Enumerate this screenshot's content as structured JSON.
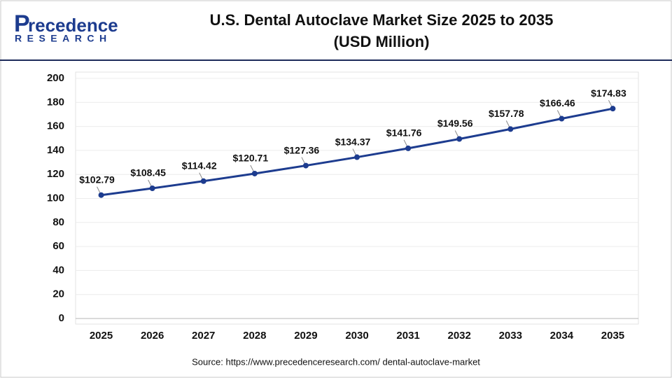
{
  "header": {
    "logo_name": "recedence",
    "logo_initial": "P",
    "logo_tagline": "RESEARCH"
  },
  "chart_data": {
    "type": "line",
    "title": "U.S. Dental Autoclave Market Size 2025 to 2035",
    "subtitle": "(USD Million)",
    "categories": [
      "2025",
      "2026",
      "2027",
      "2028",
      "2029",
      "2030",
      "2031",
      "2032",
      "2033",
      "2034",
      "2035"
    ],
    "values": [
      102.79,
      108.45,
      114.42,
      120.71,
      127.36,
      134.37,
      141.76,
      149.56,
      157.78,
      166.46,
      174.83
    ],
    "value_labels": [
      "$102.79",
      "$108.45",
      "$114.42",
      "$120.71",
      "$127.36",
      "$134.37",
      "$141.76",
      "$149.56",
      "$157.78",
      "$166.46",
      "$174.83"
    ],
    "color": "#1d3c8f",
    "ylim": [
      0,
      200
    ],
    "yticks": [
      0,
      20,
      40,
      60,
      80,
      100,
      120,
      140,
      160,
      180,
      200
    ],
    "grid": true,
    "source": "Source: https://www.precedenceresearch.com/ dental-autoclave-market"
  }
}
